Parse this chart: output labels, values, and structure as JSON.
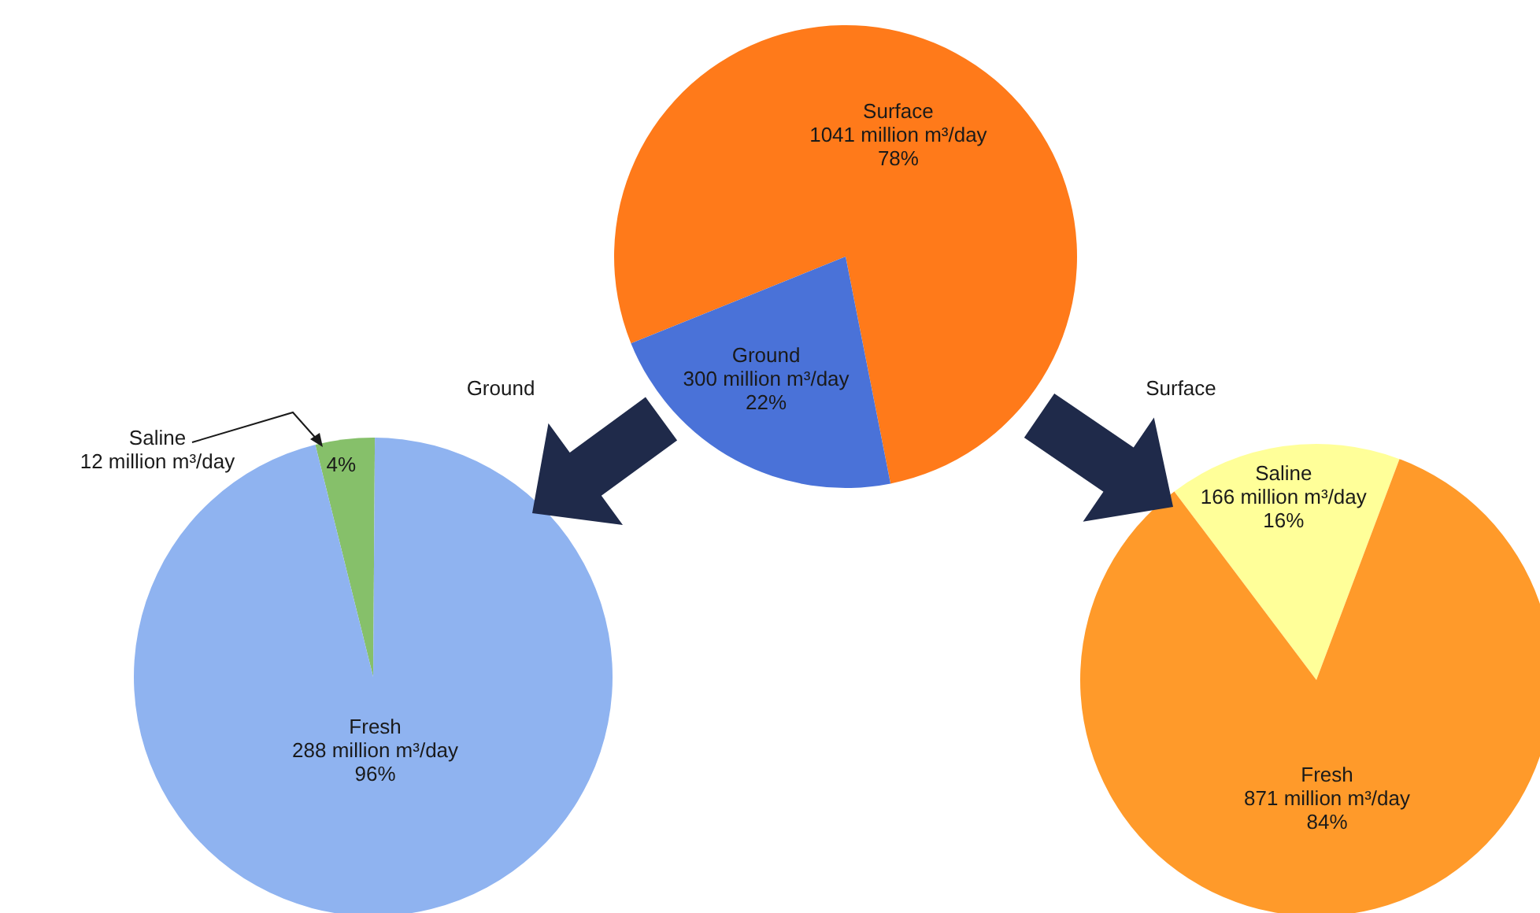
{
  "chart_data": [
    {
      "type": "pie",
      "categories": [
        "Surface",
        "Ground"
      ],
      "values": [
        78,
        22
      ],
      "colors": [
        "#ff7a1a",
        "#4a72d8"
      ],
      "value_labels": [
        "1041 million m³/day\n78%",
        "300 million m³/day\n22%"
      ]
    },
    {
      "type": "pie",
      "title": "Ground",
      "categories": [
        "Saline",
        "Fresh"
      ],
      "values": [
        4,
        96
      ],
      "colors": [
        "#86c06a",
        "#8fb3f0"
      ],
      "value_labels": [
        "12 million m³/day\n4%",
        "288 million m³/day\n96%"
      ]
    },
    {
      "type": "pie",
      "title": "Surface",
      "categories": [
        "Saline",
        "Fresh"
      ],
      "values": [
        16,
        84
      ],
      "colors": [
        "#ffff99",
        "#ff9a2a"
      ],
      "value_labels": [
        "166 million m³/day\n16%",
        "871 million m³/day\n84%"
      ]
    }
  ]
}
